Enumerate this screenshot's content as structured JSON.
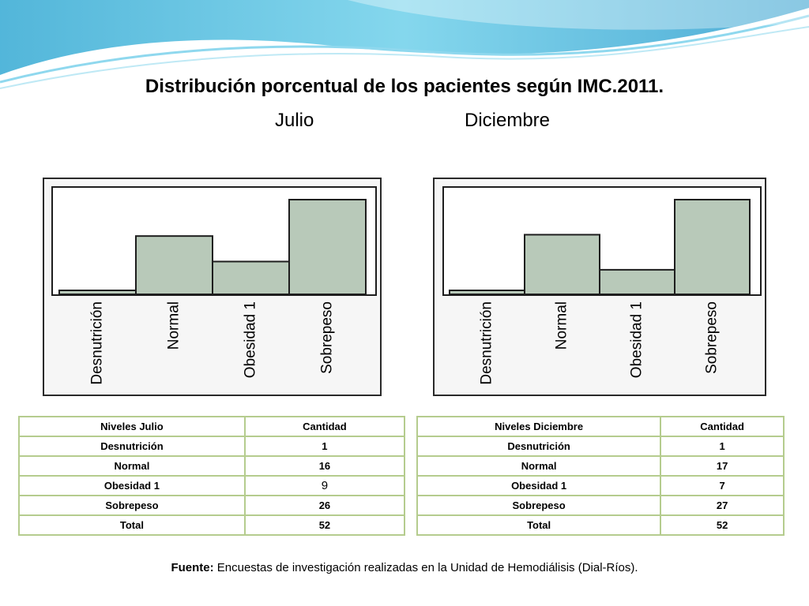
{
  "title": "Distribución porcentual de los pacientes según IMC.2011.",
  "subtitles": {
    "left": "Julio",
    "right": "Diciembre"
  },
  "colors": {
    "bar_fill": "#b8c9b9",
    "bar_stroke": "#1e1e1e",
    "table_border": "#b5cc8e",
    "swoosh": "#3ab0d6"
  },
  "chart_data": [
    {
      "type": "bar",
      "categories": [
        "Desnutrición",
        "Normal",
        "Obesidad 1",
        "Sobrepeso"
      ],
      "values": [
        1,
        16,
        9,
        26
      ],
      "title": "",
      "xlabel": "",
      "ylabel": "",
      "ylim": [
        0,
        26
      ],
      "grid": false
    },
    {
      "type": "bar",
      "categories": [
        "Desnutrición",
        "Normal",
        "Obesidad 1",
        "Sobrepeso"
      ],
      "values": [
        1,
        17,
        7,
        27
      ],
      "title": "",
      "xlabel": "",
      "ylabel": "",
      "ylim": [
        0,
        27
      ],
      "grid": false
    }
  ],
  "tables": [
    {
      "headers": [
        "Niveles Julio",
        "Cantidad"
      ],
      "rows": [
        [
          "Desnutrición",
          "1"
        ],
        [
          "Normal",
          "16"
        ],
        [
          "Obesidad 1",
          "9"
        ],
        [
          "Sobrepeso",
          "26"
        ],
        [
          "Total",
          "52"
        ]
      ]
    },
    {
      "headers": [
        "Niveles Diciembre",
        "Cantidad"
      ],
      "rows": [
        [
          "Desnutrición",
          "1"
        ],
        [
          "Normal",
          "17"
        ],
        [
          "Obesidad 1",
          "7"
        ],
        [
          "Sobrepeso",
          "27"
        ],
        [
          "Total",
          "52"
        ]
      ]
    }
  ],
  "source": {
    "label": "Fuente:",
    "text": " Encuestas de investigación realizadas en la Unidad de Hemodiálisis (Dial-Ríos)."
  }
}
